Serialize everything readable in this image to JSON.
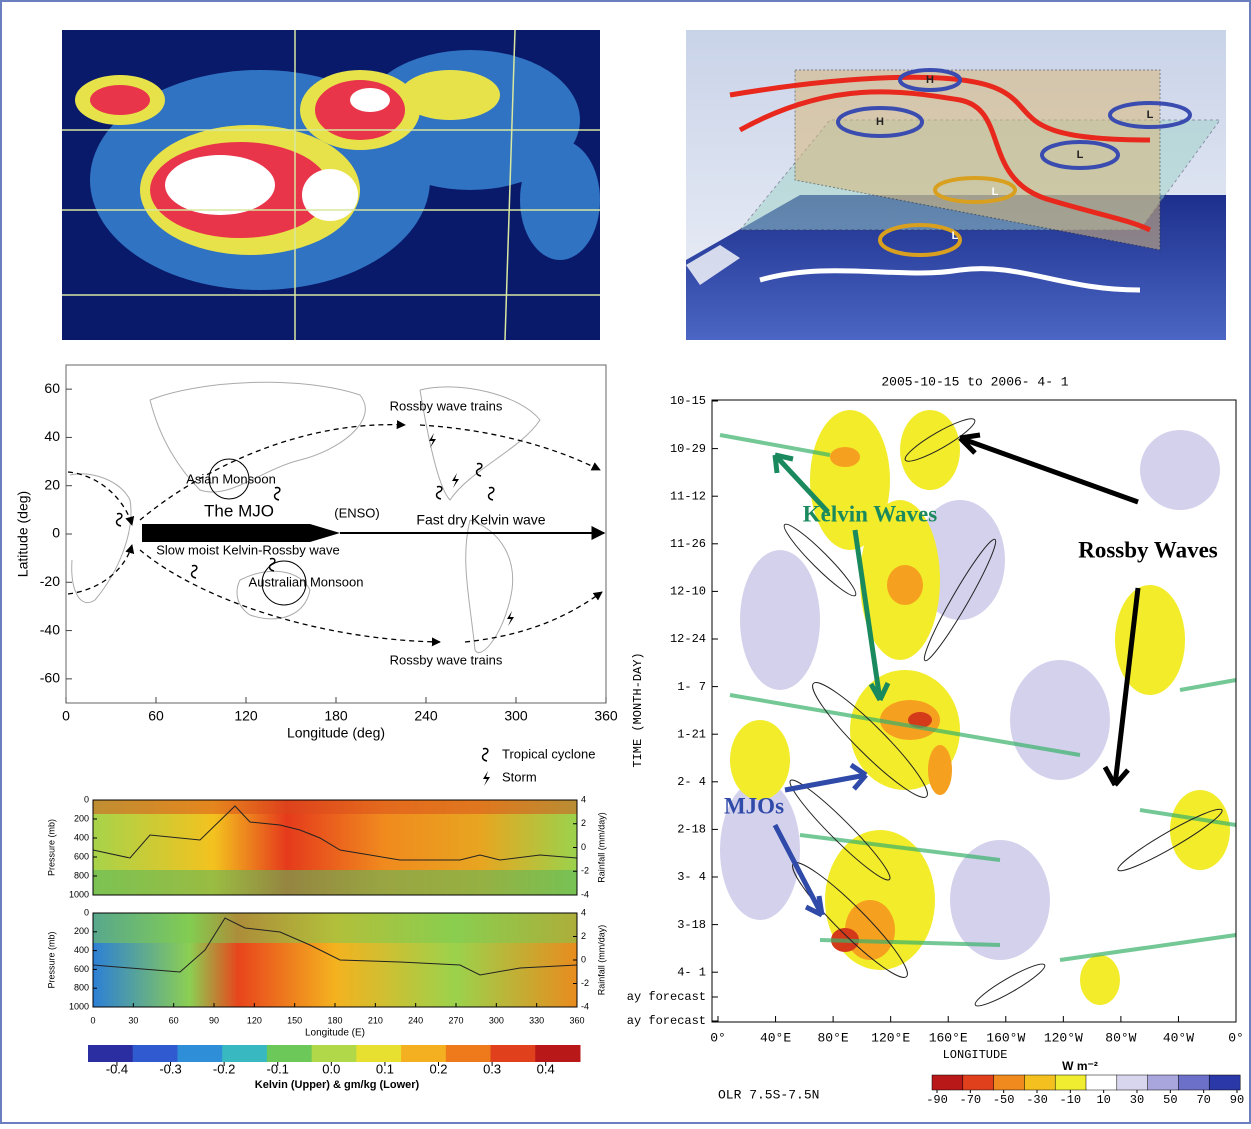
{
  "schematic": {
    "labels": [
      "H",
      "H",
      "L",
      "L",
      "L",
      "L"
    ]
  },
  "map": {
    "xlabel": "Longitude (deg)",
    "ylabel": "Latitude (deg)",
    "xlim": [
      0,
      360
    ],
    "ylim": [
      -70,
      70
    ],
    "xticks": [
      0,
      60,
      120,
      180,
      240,
      300,
      360
    ],
    "yticks": [
      60,
      40,
      20,
      0,
      -20,
      -40,
      -60
    ],
    "annotations": [
      "Rossby wave trains",
      "Asian Monsoon",
      "The MJO",
      "(ENSO)",
      "Fast dry Kelvin wave",
      "Slow moist Kelvin-Rossby wave",
      "Australian Monsoon",
      "Rossby wave trains"
    ],
    "legend": [
      "Tropical cyclone",
      "Storm"
    ]
  },
  "cross_sections": {
    "xlabel": "Longitude (E)",
    "ylabel": "Pressure (mb)",
    "y2label": "Rainfall (mm/day)",
    "xlim": [
      0,
      360
    ],
    "xticks": [
      0,
      30,
      60,
      90,
      120,
      150,
      180,
      210,
      240,
      270,
      300,
      330,
      360
    ],
    "ylim": [
      0,
      1000
    ],
    "yticks": [
      0,
      200,
      400,
      600,
      800,
      1000
    ],
    "y2lim": [
      -4,
      4
    ],
    "y2ticks": [
      4,
      2,
      0,
      -2,
      -4
    ],
    "colorbar": {
      "label": "Kelvin (Upper) & gm/kg (Lower)",
      "lim": [
        -0.454,
        0.464
      ],
      "ticks": [
        -0.4,
        -0.3,
        -0.2,
        -0.1,
        {
          "value": 0,
          "label": "0.0"
        },
        0.1,
        0.2,
        0.3,
        0.4
      ]
    }
  },
  "hovmoller": {
    "title": "2005-10-15 to 2006- 4- 1",
    "ylabel": "TIME (MONTH-DAY)",
    "xlabel": "LONGITUDE",
    "yticks": [
      "10-15",
      "10-29",
      "11-12",
      "11-26",
      "12-10",
      "12-24",
      "1- 7",
      "1-21",
      "2- 4",
      "2-18",
      "3- 4",
      "3-18",
      "4- 1",
      "ay forecast",
      "ay forecast"
    ],
    "xticks": [
      "0°",
      "40°E",
      "80°E",
      "120°E",
      "160°E",
      "160°W",
      "120°W",
      "80°W",
      "40°W",
      "0°"
    ],
    "annotations": [
      "Kelvin Waves",
      "Rossby Waves",
      "MJOs"
    ],
    "unit": "W m⁻²",
    "footer": "OLR 7.5S-7.5N",
    "colorbar": {
      "lim": [
        -90,
        90
      ],
      "ticks": [
        -90,
        -70,
        -50,
        -30,
        -10,
        10,
        30,
        50,
        70,
        90
      ]
    }
  }
}
